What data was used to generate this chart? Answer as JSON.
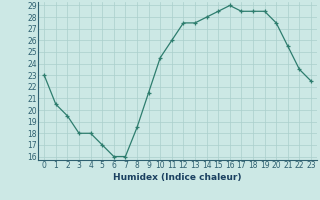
{
  "x": [
    0,
    1,
    2,
    3,
    4,
    5,
    6,
    7,
    8,
    9,
    10,
    11,
    12,
    13,
    14,
    15,
    16,
    17,
    18,
    19,
    20,
    21,
    22,
    23
  ],
  "y": [
    23,
    20.5,
    19.5,
    18,
    18,
    17,
    16,
    16,
    18.5,
    21.5,
    24.5,
    26,
    27.5,
    27.5,
    28,
    28.5,
    29,
    28.5,
    28.5,
    28.5,
    27.5,
    25.5,
    23.5,
    22.5
  ],
  "line_color": "#2e7d6e",
  "marker": "+",
  "bg_color": "#cce8e5",
  "grid_color": "#aacfcc",
  "xlabel": "Humidex (Indice chaleur)",
  "tick_color": "#2e6070",
  "label_color": "#1a4060",
  "ylim_min": 16,
  "ylim_max": 29,
  "xlim_min": 0,
  "xlim_max": 23,
  "yticks": [
    16,
    17,
    18,
    19,
    20,
    21,
    22,
    23,
    24,
    25,
    26,
    27,
    28,
    29
  ],
  "xticks": [
    0,
    1,
    2,
    3,
    4,
    5,
    6,
    7,
    8,
    9,
    10,
    11,
    12,
    13,
    14,
    15,
    16,
    17,
    18,
    19,
    20,
    21,
    22,
    23
  ],
  "tick_fontsize": 5.5,
  "xlabel_fontsize": 6.5,
  "marker_size": 3,
  "line_width": 0.9,
  "marker_edge_width": 0.9
}
